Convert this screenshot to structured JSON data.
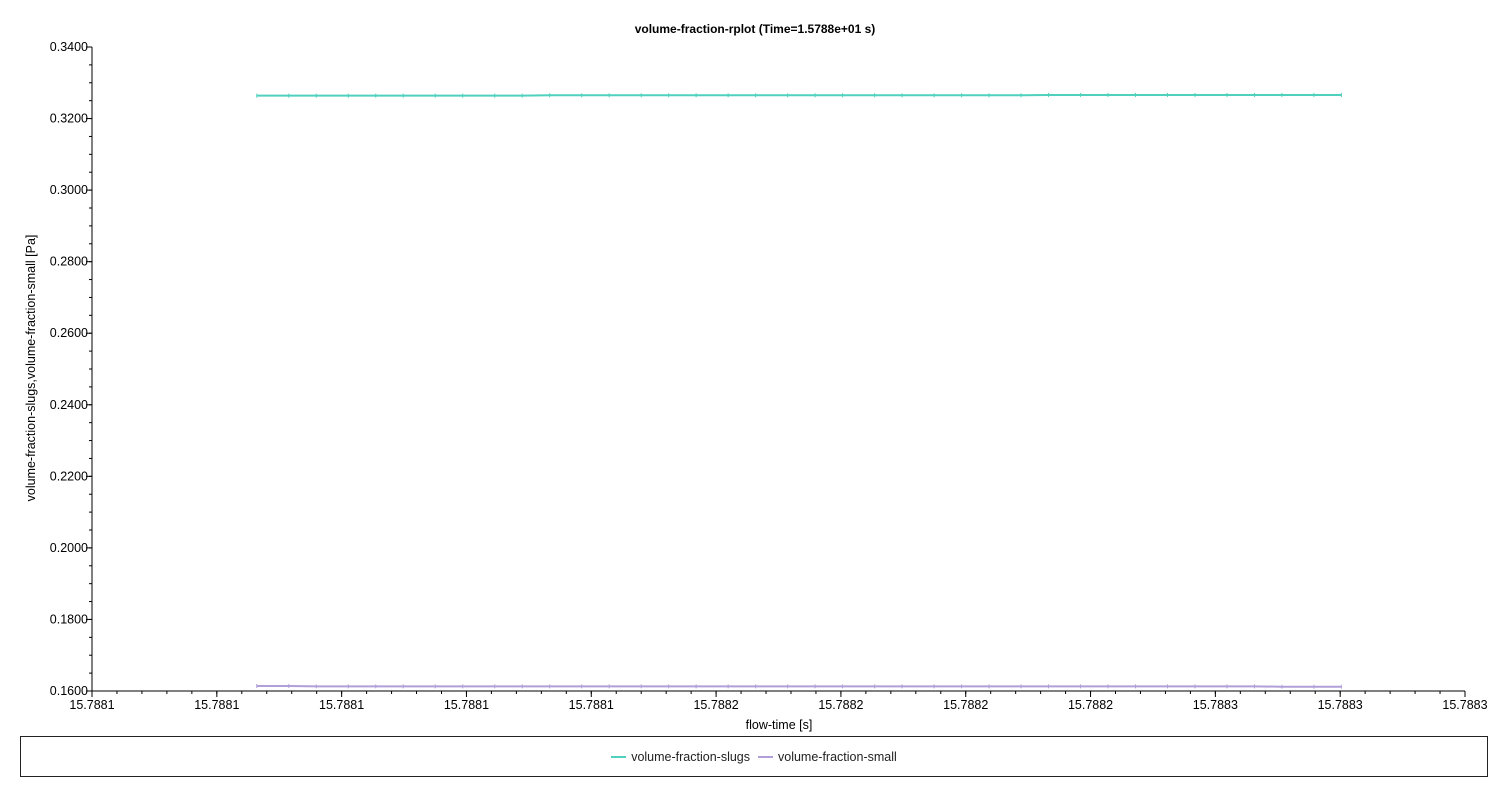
{
  "chart_data": {
    "type": "line",
    "title": "volume-fraction-rplot (Time=1.5788e+01 s)",
    "xlabel": "flow-time [s]",
    "ylabel": "volume-fraction-slugs,volume-fraction-small [Pa]",
    "xlim": [
      15.78805,
      15.78835
    ],
    "ylim": [
      0.16,
      0.34
    ],
    "x_tick_labels": [
      "15.7881",
      "15.7881",
      "15.7881",
      "15.7881",
      "15.7881",
      "15.7882",
      "15.7882",
      "15.7882",
      "15.7882",
      "15.7883",
      "15.7883",
      "15.7883"
    ],
    "y_tick_labels": [
      "0.3400",
      "0.3200",
      "0.3000",
      "0.2800",
      "0.2600",
      "0.2400",
      "0.2200",
      "0.2000",
      "0.1800",
      "0.1600"
    ],
    "y_ticks": [
      0.34,
      0.32,
      0.3,
      0.28,
      0.26,
      0.24,
      0.22,
      0.2,
      0.18,
      0.16
    ],
    "x": [
      15.788086,
      15.788093,
      15.788099,
      15.788106,
      15.788112,
      15.788118,
      15.788125,
      15.788131,
      15.788138,
      15.788144,
      15.78815,
      15.788157,
      15.788163,
      15.78817,
      15.788176,
      15.788182,
      15.788189,
      15.788195,
      15.788202,
      15.788208,
      15.788214,
      15.788221,
      15.788227,
      15.788234,
      15.78824,
      15.788246,
      15.788253,
      15.788259,
      15.788266,
      15.788272,
      15.788278,
      15.788285,
      15.788291,
      15.788298,
      15.788304,
      15.78831,
      15.788317,
      15.788323
    ],
    "series": [
      {
        "name": "volume-fraction-slugs",
        "color": "#4fd1bd",
        "values": [
          0.3264,
          0.3264,
          0.3264,
          0.3264,
          0.3264,
          0.3264,
          0.3264,
          0.3264,
          0.3264,
          0.3264,
          0.3265,
          0.3265,
          0.3265,
          0.3265,
          0.3265,
          0.3265,
          0.3265,
          0.3265,
          0.3265,
          0.3265,
          0.3265,
          0.3265,
          0.3265,
          0.3265,
          0.3265,
          0.3265,
          0.3265,
          0.3266,
          0.3266,
          0.3266,
          0.3266,
          0.3266,
          0.3266,
          0.3266,
          0.3266,
          0.3266,
          0.3266,
          0.3266
        ]
      },
      {
        "name": "volume-fraction-small",
        "color": "#b09fd8",
        "values": [
          0.1614,
          0.1614,
          0.1613,
          0.1613,
          0.1613,
          0.1613,
          0.1613,
          0.1613,
          0.1613,
          0.1613,
          0.1613,
          0.1613,
          0.1613,
          0.1613,
          0.1613,
          0.1613,
          0.1613,
          0.1613,
          0.1613,
          0.1613,
          0.1613,
          0.1613,
          0.1613,
          0.1613,
          0.1613,
          0.1613,
          0.1613,
          0.1613,
          0.1613,
          0.1613,
          0.1613,
          0.1613,
          0.1613,
          0.1613,
          0.1613,
          0.1612,
          0.1612,
          0.1612
        ]
      }
    ],
    "legend_position": "bottom",
    "grid": false
  }
}
